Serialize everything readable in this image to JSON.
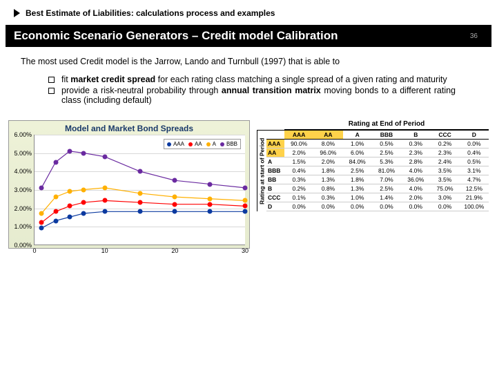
{
  "breadcrumb": "Best Estimate of Liabilities: calculations process and examples",
  "title": "Economic Scenario Generators – Credit model Calibration",
  "page_number": "36",
  "intro": "The most used Credit model is the Jarrow, Lando and Turnbull (1997) that is able to",
  "bullets": [
    {
      "pre": "fit ",
      "bold": "market credit spread",
      "post": " for each rating class matching a single spread of a given rating and maturity"
    },
    {
      "pre": "provide a risk-neutral probability through ",
      "bold": "annual transition matrix",
      "post": " moving bonds to a different rating class (including default)"
    }
  ],
  "chart": {
    "title": "Model and Market Bond Spreads",
    "ylim": [
      0,
      6
    ],
    "ytick_step": 1,
    "ylabels": [
      "0.00%",
      "1.00%",
      "2.00%",
      "3.00%",
      "4.00%",
      "5.00%",
      "6.00%"
    ],
    "xticks": [
      0,
      10,
      20,
      30
    ],
    "xvals": [
      1,
      3,
      5,
      7,
      10,
      15,
      20,
      25,
      30
    ],
    "series": [
      {
        "name": "AAA",
        "color": "#0b3aa0",
        "y": [
          0.9,
          1.3,
          1.5,
          1.7,
          1.8,
          1.8,
          1.8,
          1.8,
          1.8
        ]
      },
      {
        "name": "AA",
        "color": "#ff0000",
        "y": [
          1.2,
          1.8,
          2.1,
          2.3,
          2.4,
          2.3,
          2.2,
          2.2,
          2.1
        ]
      },
      {
        "name": "A",
        "color": "#ffb000",
        "y": [
          1.7,
          2.6,
          2.9,
          3.0,
          3.1,
          2.8,
          2.6,
          2.5,
          2.4
        ]
      },
      {
        "name": "BBB",
        "color": "#6a2aa0",
        "y": [
          3.1,
          4.5,
          5.1,
          5.0,
          4.8,
          4.0,
          3.5,
          3.3,
          3.1
        ]
      }
    ]
  },
  "matrix": {
    "suptitle": "Rating at End of Period",
    "side_label": "Rating at start of Period",
    "cols": [
      "AAA",
      "AA",
      "A",
      "BBB",
      "B",
      "CCC",
      "D"
    ],
    "highlight_rows": [
      0,
      1
    ],
    "rows": [
      {
        "label": "AAA",
        "cells": [
          "90.0%",
          "8.0%",
          "1.0%",
          "0.5%",
          "0.3%",
          "0.2%",
          "0.0%"
        ]
      },
      {
        "label": "AA",
        "cells": [
          "2.0%",
          "96.0%",
          "6.0%",
          "2.5%",
          "2.3%",
          "2.3%",
          "0.4%"
        ]
      },
      {
        "label": "A",
        "cells": [
          "1.5%",
          "2.0%",
          "84.0%",
          "5.3%",
          "2.8%",
          "2.4%",
          "0.5%"
        ]
      },
      {
        "label": "BBB",
        "cells": [
          "0.4%",
          "1.8%",
          "2.5%",
          "81.0%",
          "4.0%",
          "3.5%",
          "3.1%"
        ]
      },
      {
        "label": "BB",
        "cells": [
          "0.3%",
          "1.3%",
          "1.8%",
          "7.0%",
          "36.0%",
          "3.5%",
          "4.7%"
        ]
      },
      {
        "label": "B",
        "cells": [
          "0.2%",
          "0.8%",
          "1.3%",
          "2.5%",
          "4.0%",
          "75.0%",
          "12.5%"
        ]
      },
      {
        "label": "CCC",
        "cells": [
          "0.1%",
          "0.3%",
          "1.0%",
          "1.4%",
          "2.0%",
          "3.0%",
          "21.9%"
        ]
      },
      {
        "label": "D",
        "cells": [
          "0.0%",
          "0.0%",
          "0.0%",
          "0.0%",
          "0.0%",
          "0.0%",
          "100.0%"
        ]
      }
    ]
  }
}
